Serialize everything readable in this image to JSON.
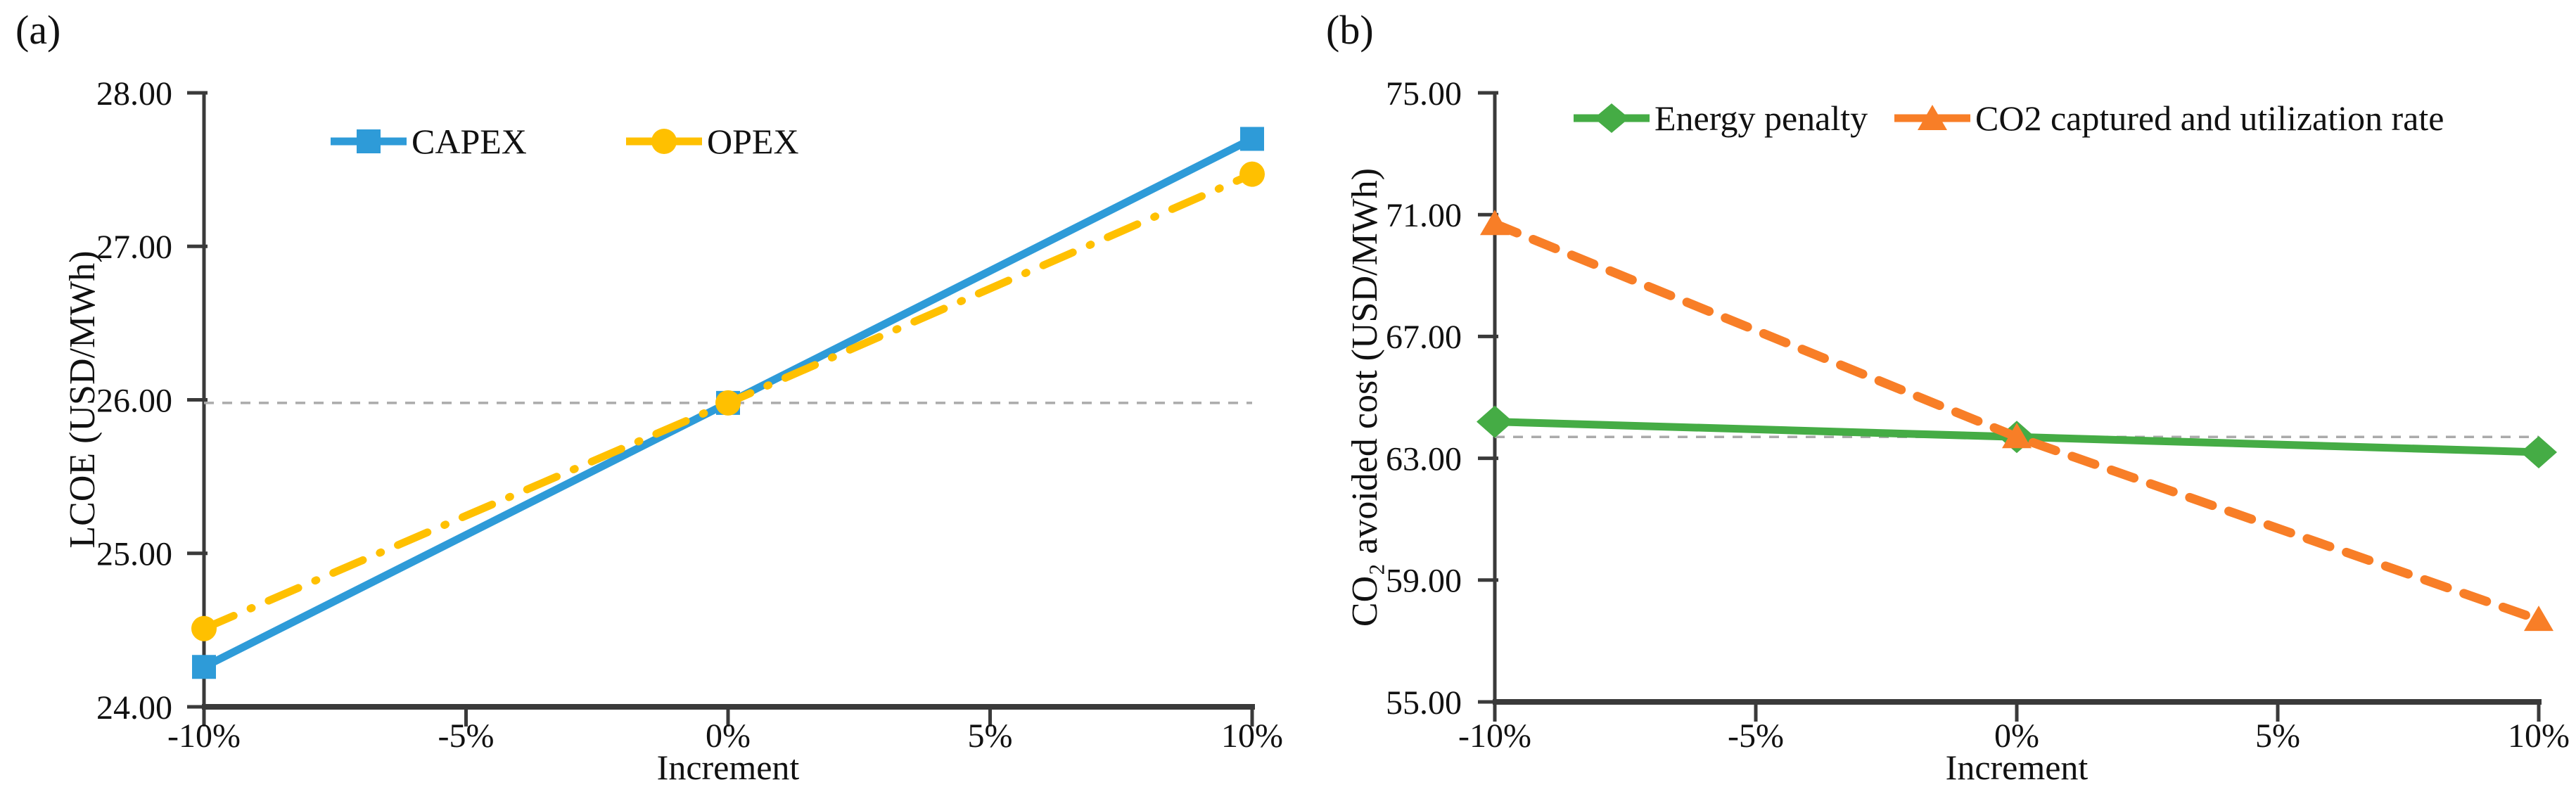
{
  "figure": {
    "background": "#ffffff",
    "text_color": "#111111",
    "axis_color": "#3a3a3a",
    "baseline_color": "#ABABAB"
  },
  "chart_data": [
    {
      "type": "line",
      "panel_label": "(a)",
      "title": "",
      "xlabel": "Increment",
      "ylabel": "LCOE (USD/MWh)",
      "x_ticks": [
        -10,
        -5,
        0,
        5,
        10
      ],
      "x_tick_labels": [
        "-10%",
        "-5%",
        "0%",
        "5%",
        "10%"
      ],
      "ylim": [
        24,
        28
      ],
      "y_ticks": [
        24,
        25,
        26,
        27,
        28
      ],
      "y_tick_labels": [
        "24.00",
        "25.00",
        "26.00",
        "27.00",
        "28.00"
      ],
      "grid": false,
      "legend_position": "top-center",
      "baseline": {
        "value": 25.98,
        "style": "dashed",
        "color": "#ABABAB"
      },
      "series": [
        {
          "name": "CAPEX",
          "color": "#2E9BD8",
          "line_style": "solid",
          "marker": "square",
          "x": [
            -10,
            0,
            10
          ],
          "values": [
            24.26,
            25.98,
            27.7
          ]
        },
        {
          "name": "OPEX",
          "color": "#FFC000",
          "line_style": "dash-dot",
          "marker": "circle",
          "x": [
            -10,
            0,
            10
          ],
          "values": [
            24.51,
            25.98,
            27.47
          ]
        }
      ]
    },
    {
      "type": "line",
      "panel_label": "(b)",
      "title": "",
      "xlabel": "Increment",
      "ylabel": "CO₂ avoided cost (USD/MWh)",
      "x_ticks": [
        -10,
        -5,
        0,
        5,
        10
      ],
      "x_tick_labels": [
        "-10%",
        "-5%",
        "0%",
        "5%",
        "10%"
      ],
      "ylim": [
        55,
        75
      ],
      "y_ticks": [
        55,
        59,
        63,
        67,
        71,
        75
      ],
      "y_tick_labels": [
        "55.00",
        "59.00",
        "63.00",
        "67.00",
        "71.00",
        "75.00"
      ],
      "grid": false,
      "legend_position": "top-center",
      "baseline": {
        "value": 63.7,
        "style": "dashed",
        "color": "#ABABAB"
      },
      "series": [
        {
          "name": "Energy penalty",
          "color": "#45AC45",
          "line_style": "solid",
          "marker": "diamond",
          "x": [
            -10,
            0,
            10
          ],
          "values": [
            64.2,
            63.7,
            63.2
          ]
        },
        {
          "name": "CO2 captured and utilization rate",
          "color": "#F87E27",
          "line_style": "dashed",
          "marker": "triangle",
          "x": [
            -10,
            0,
            10
          ],
          "values": [
            70.7,
            63.7,
            57.7
          ]
        }
      ]
    }
  ]
}
